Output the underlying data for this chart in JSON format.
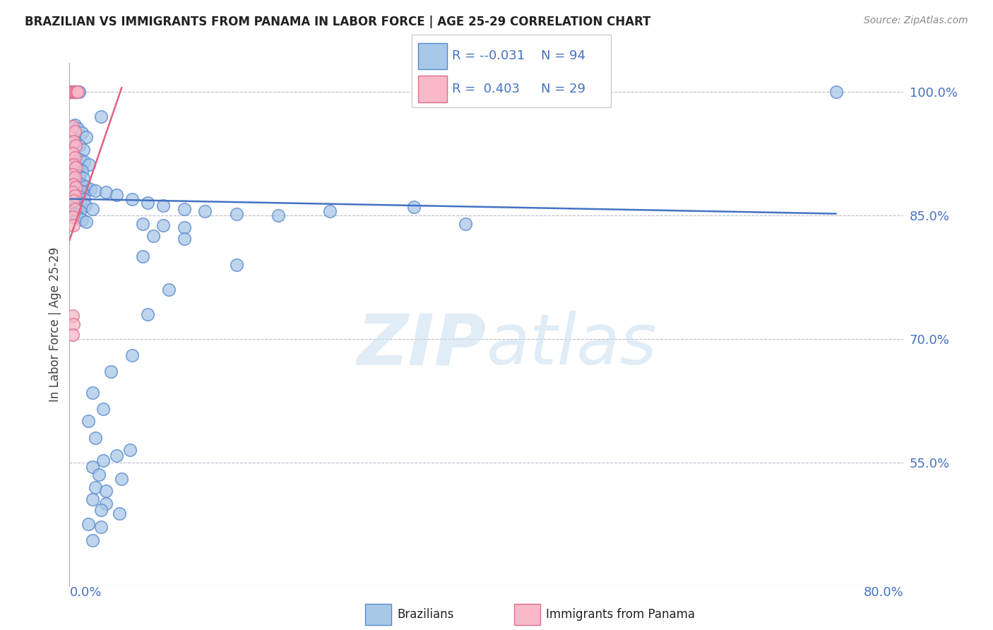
{
  "title": "BRAZILIAN VS IMMIGRANTS FROM PANAMA IN LABOR FORCE | AGE 25-29 CORRELATION CHART",
  "source": "Source: ZipAtlas.com",
  "ylabel": "In Labor Force | Age 25-29",
  "ytick_labels": [
    "100.0%",
    "85.0%",
    "70.0%",
    "55.0%"
  ],
  "ytick_values": [
    1.0,
    0.85,
    0.7,
    0.55
  ],
  "xmin": 0.0,
  "xmax": 0.8,
  "ymin": 0.4,
  "ymax": 1.035,
  "legend_blue_r": "-0.031",
  "legend_blue_n": "94",
  "legend_pink_r": "0.403",
  "legend_pink_n": "29",
  "blue_scatter_color": "#a8c8e8",
  "blue_edge_color": "#5588cc",
  "pink_scatter_color": "#f8b8c8",
  "pink_edge_color": "#e07090",
  "blue_line_color": "#4472c4",
  "pink_line_color": "#e06080",
  "blue_scatter": [
    [
      0.001,
      1.0
    ],
    [
      0.002,
      1.0
    ],
    [
      0.003,
      1.0
    ],
    [
      0.004,
      1.0
    ],
    [
      0.005,
      1.0
    ],
    [
      0.006,
      1.0
    ],
    [
      0.007,
      1.0
    ],
    [
      0.008,
      1.0
    ],
    [
      0.009,
      1.0
    ],
    [
      0.03,
      0.97
    ],
    [
      0.005,
      0.96
    ],
    [
      0.008,
      0.955
    ],
    [
      0.012,
      0.95
    ],
    [
      0.016,
      0.945
    ],
    [
      0.005,
      0.94
    ],
    [
      0.009,
      0.935
    ],
    [
      0.013,
      0.93
    ],
    [
      0.006,
      0.92
    ],
    [
      0.01,
      0.918
    ],
    [
      0.014,
      0.915
    ],
    [
      0.019,
      0.912
    ],
    [
      0.004,
      0.91
    ],
    [
      0.008,
      0.907
    ],
    [
      0.012,
      0.904
    ],
    [
      0.005,
      0.9
    ],
    [
      0.009,
      0.898
    ],
    [
      0.013,
      0.895
    ],
    [
      0.007,
      0.89
    ],
    [
      0.011,
      0.888
    ],
    [
      0.015,
      0.885
    ],
    [
      0.02,
      0.882
    ],
    [
      0.004,
      0.885
    ],
    [
      0.008,
      0.882
    ],
    [
      0.012,
      0.879
    ],
    [
      0.005,
      0.875
    ],
    [
      0.009,
      0.873
    ],
    [
      0.014,
      0.87
    ],
    [
      0.006,
      0.868
    ],
    [
      0.01,
      0.865
    ],
    [
      0.015,
      0.862
    ],
    [
      0.022,
      0.858
    ],
    [
      0.004,
      0.862
    ],
    [
      0.007,
      0.858
    ],
    [
      0.01,
      0.855
    ],
    [
      0.005,
      0.852
    ],
    [
      0.008,
      0.848
    ],
    [
      0.012,
      0.845
    ],
    [
      0.016,
      0.842
    ],
    [
      0.025,
      0.88
    ],
    [
      0.035,
      0.878
    ],
    [
      0.045,
      0.875
    ],
    [
      0.06,
      0.87
    ],
    [
      0.075,
      0.865
    ],
    [
      0.09,
      0.862
    ],
    [
      0.11,
      0.858
    ],
    [
      0.13,
      0.855
    ],
    [
      0.16,
      0.852
    ],
    [
      0.2,
      0.85
    ],
    [
      0.25,
      0.855
    ],
    [
      0.33,
      0.86
    ],
    [
      0.07,
      0.84
    ],
    [
      0.09,
      0.838
    ],
    [
      0.11,
      0.835
    ],
    [
      0.08,
      0.825
    ],
    [
      0.11,
      0.822
    ],
    [
      0.38,
      0.84
    ],
    [
      0.07,
      0.8
    ],
    [
      0.16,
      0.79
    ],
    [
      0.095,
      0.76
    ],
    [
      0.075,
      0.73
    ],
    [
      0.06,
      0.68
    ],
    [
      0.04,
      0.66
    ],
    [
      0.022,
      0.635
    ],
    [
      0.032,
      0.615
    ],
    [
      0.018,
      0.6
    ],
    [
      0.025,
      0.58
    ],
    [
      0.058,
      0.565
    ],
    [
      0.045,
      0.558
    ],
    [
      0.032,
      0.552
    ],
    [
      0.022,
      0.545
    ],
    [
      0.028,
      0.535
    ],
    [
      0.05,
      0.53
    ],
    [
      0.025,
      0.52
    ],
    [
      0.035,
      0.515
    ],
    [
      0.022,
      0.505
    ],
    [
      0.035,
      0.5
    ],
    [
      0.03,
      0.492
    ],
    [
      0.048,
      0.488
    ],
    [
      0.018,
      0.475
    ],
    [
      0.03,
      0.472
    ],
    [
      0.022,
      0.455
    ],
    [
      0.735,
      1.0
    ]
  ],
  "pink_scatter": [
    [
      0.001,
      1.0
    ],
    [
      0.002,
      1.0
    ],
    [
      0.003,
      1.0
    ],
    [
      0.004,
      1.0
    ],
    [
      0.005,
      1.0
    ],
    [
      0.006,
      1.0
    ],
    [
      0.007,
      1.0
    ],
    [
      0.008,
      1.0
    ],
    [
      0.003,
      0.958
    ],
    [
      0.005,
      0.952
    ],
    [
      0.004,
      0.94
    ],
    [
      0.006,
      0.935
    ],
    [
      0.003,
      0.925
    ],
    [
      0.005,
      0.92
    ],
    [
      0.004,
      0.912
    ],
    [
      0.006,
      0.908
    ],
    [
      0.003,
      0.9
    ],
    [
      0.005,
      0.896
    ],
    [
      0.004,
      0.888
    ],
    [
      0.006,
      0.884
    ],
    [
      0.003,
      0.878
    ],
    [
      0.005,
      0.874
    ],
    [
      0.004,
      0.868
    ],
    [
      0.005,
      0.858
    ],
    [
      0.003,
      0.848
    ],
    [
      0.004,
      0.838
    ],
    [
      0.003,
      0.728
    ],
    [
      0.004,
      0.718
    ],
    [
      0.003,
      0.705
    ]
  ],
  "blue_line_x": [
    0.0,
    0.735
  ],
  "blue_line_y": [
    0.87,
    0.852
  ],
  "pink_line_x": [
    0.0,
    0.05
  ],
  "pink_line_y": [
    0.82,
    1.005
  ]
}
